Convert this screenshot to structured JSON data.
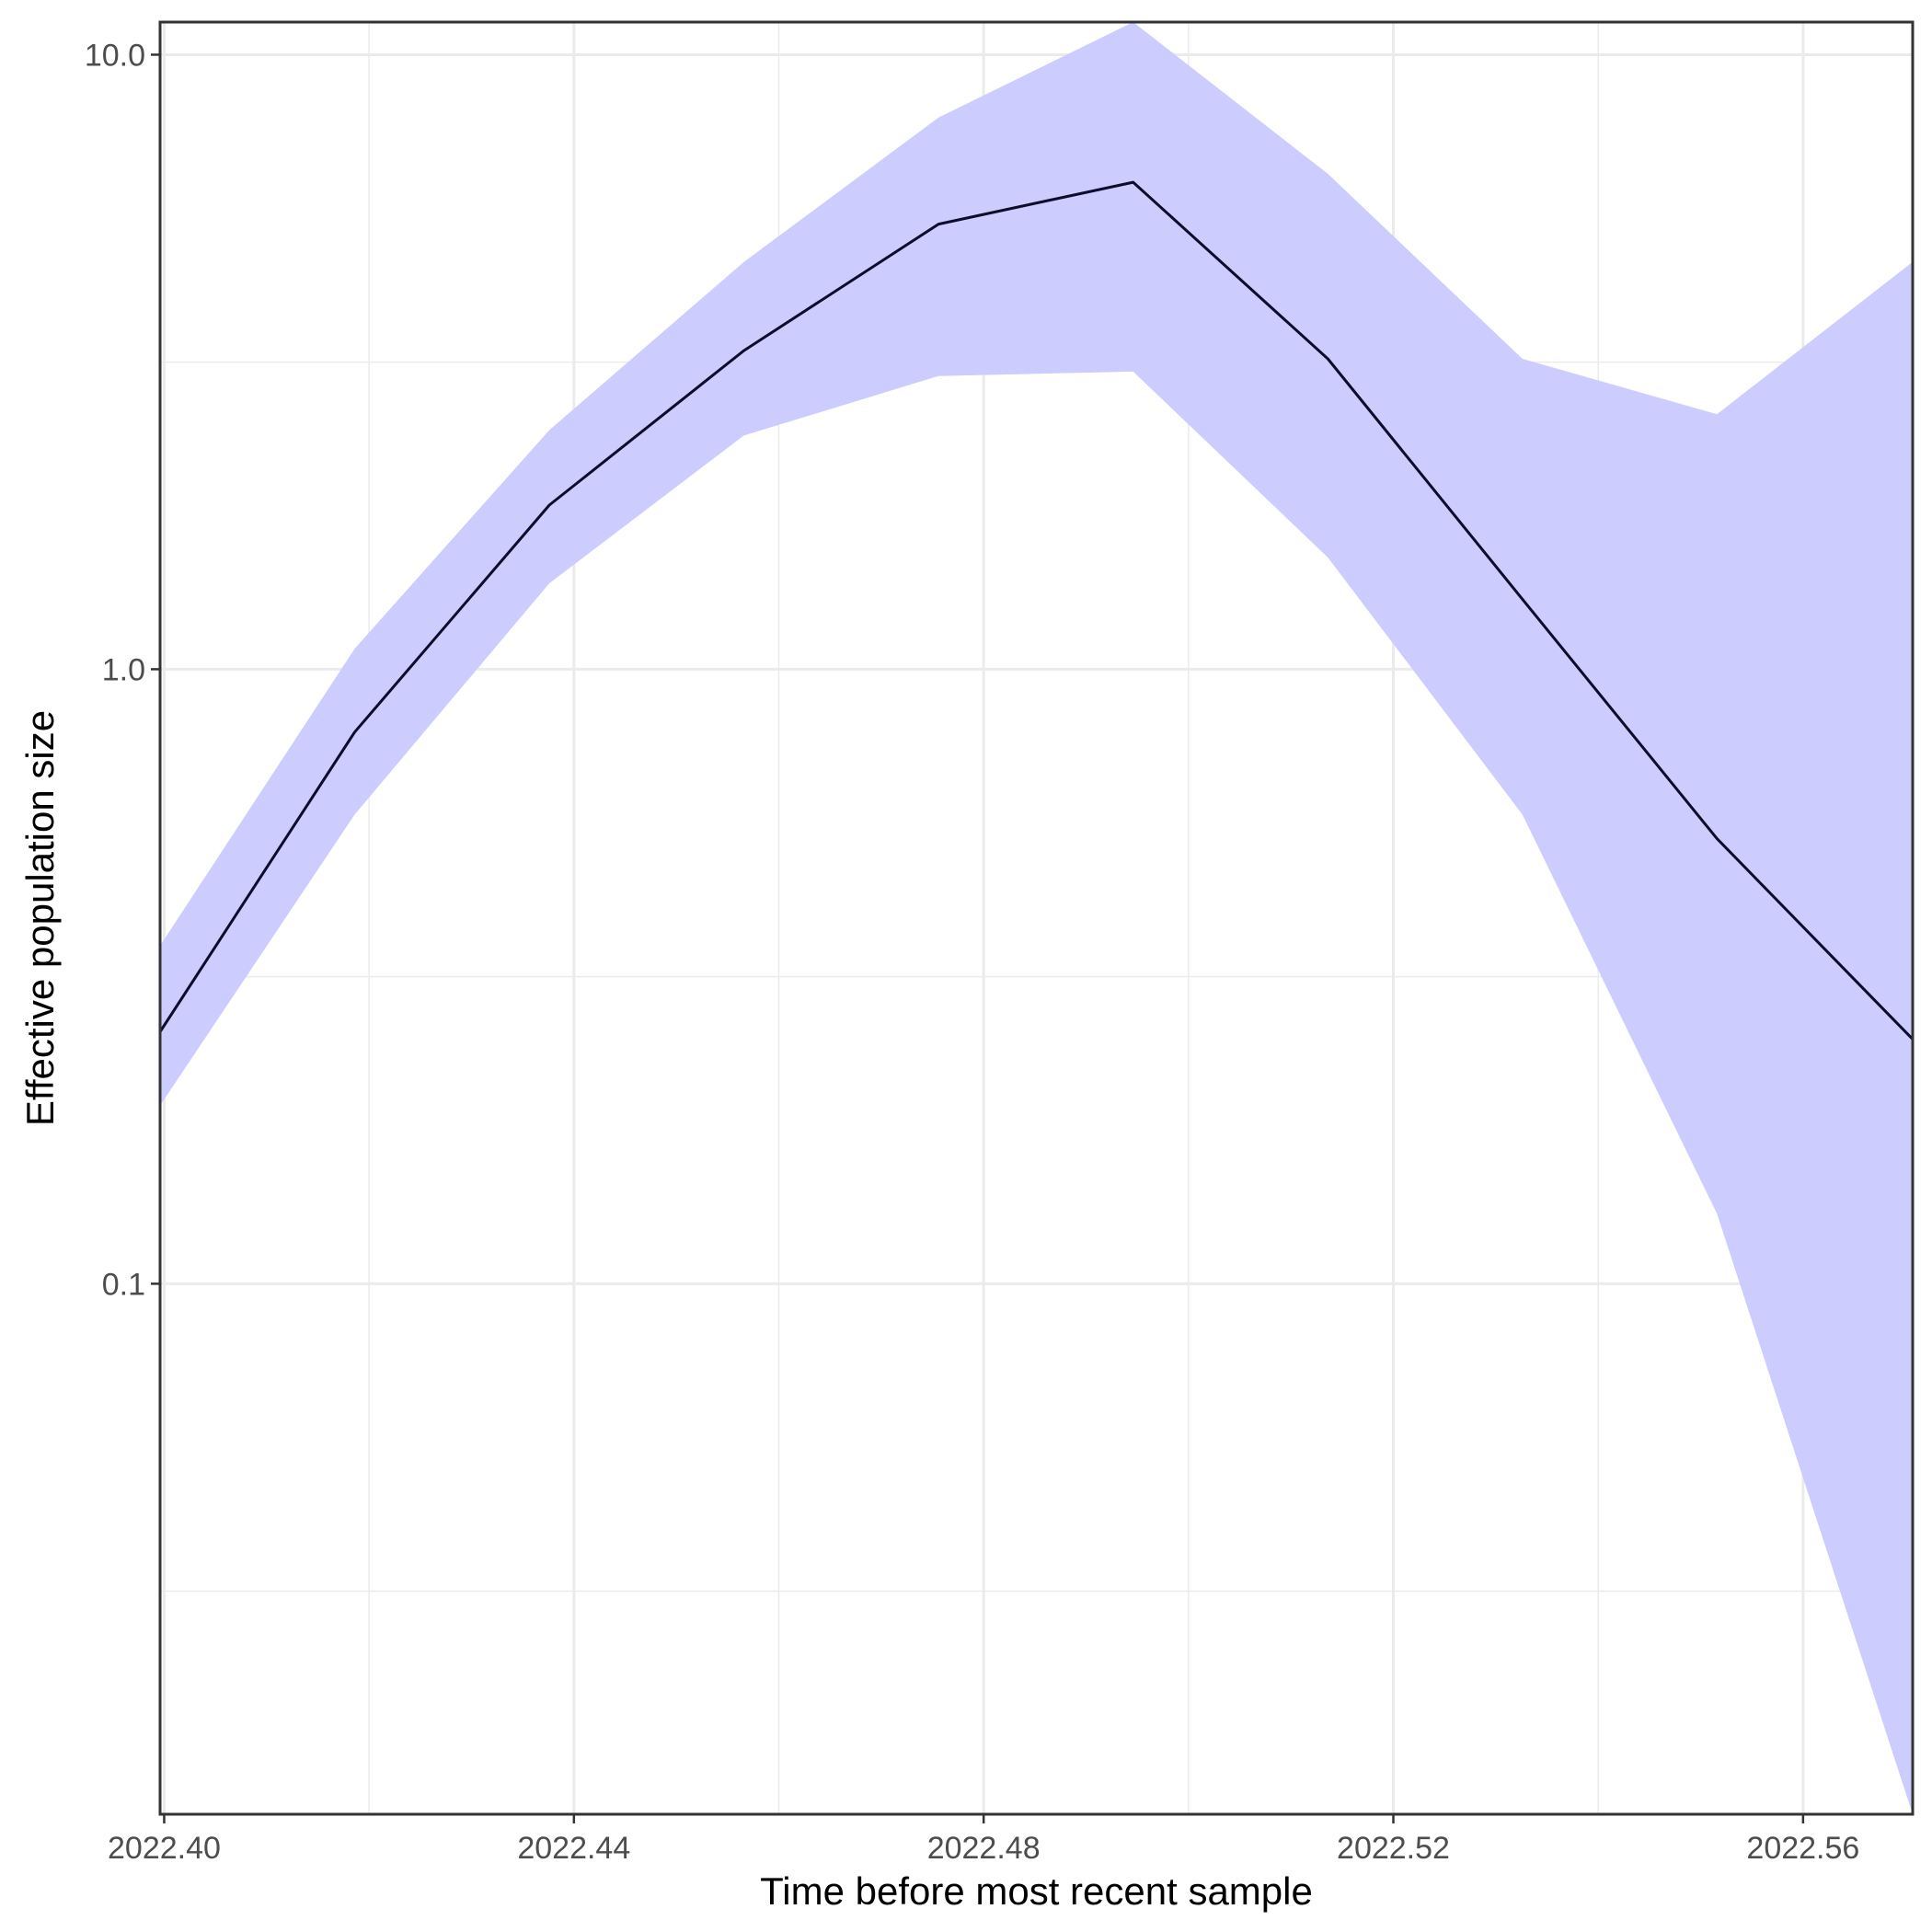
{
  "chart_data": {
    "type": "area",
    "title": "",
    "xlabel": "Time before most recent sample",
    "ylabel": "Effective population size",
    "xlim": [
      2022.3996,
      2022.5707
    ],
    "ylim": [
      0.0137,
      11.3
    ],
    "y_scale": "log",
    "grid": true,
    "x_ticks": [
      {
        "value": 2022.4,
        "label": "2022.40"
      },
      {
        "value": 2022.44,
        "label": "2022.44"
      },
      {
        "value": 2022.48,
        "label": "2022.48"
      },
      {
        "value": 2022.52,
        "label": "2022.52"
      },
      {
        "value": 2022.56,
        "label": "2022.56"
      }
    ],
    "y_ticks": [
      {
        "value": 0.1,
        "label": "0.1"
      },
      {
        "value": 1.0,
        "label": "1.0"
      },
      {
        "value": 10.0,
        "label": "10.0"
      }
    ],
    "x_minor_ticks": [
      2022.42,
      2022.46,
      2022.5,
      2022.54
    ],
    "y_minor_ticks": [
      0.0316,
      0.316,
      3.16
    ],
    "series": [
      {
        "x": [
          2022.3996,
          2022.4186,
          2022.4376,
          2022.4566,
          2022.4756,
          2022.4946,
          2022.5136,
          2022.5326,
          2022.5516,
          2022.5707
        ],
        "values": [
          0.257,
          0.79,
          1.85,
          3.3,
          5.3,
          6.2,
          3.2,
          1.3,
          0.53,
          0.25
        ],
        "lower": [
          0.195,
          0.58,
          1.38,
          2.4,
          3.0,
          3.05,
          1.52,
          0.58,
          0.13,
          0.0137
        ],
        "upper": [
          0.355,
          1.08,
          2.45,
          4.6,
          7.9,
          11.3,
          6.4,
          3.2,
          2.6,
          4.6
        ]
      }
    ],
    "colors": {
      "line": "#0d0d2b",
      "ribbon": "#ccccff",
      "border": "#333333",
      "grid": "#ebebeb"
    }
  }
}
